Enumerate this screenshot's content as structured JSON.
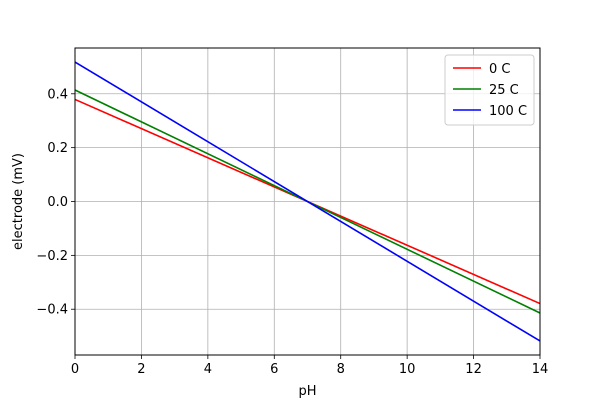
{
  "chart_data": {
    "type": "line",
    "title": "",
    "xlabel": "pH",
    "ylabel": "electrode (mV)",
    "xlim": [
      0,
      14
    ],
    "ylim": [
      -0.57,
      0.57
    ],
    "xticks": [
      0,
      2,
      4,
      6,
      8,
      10,
      12,
      14
    ],
    "yticks": [
      -0.4,
      -0.2,
      0.0,
      0.2,
      0.4
    ],
    "xtick_labels": [
      "0",
      "2",
      "4",
      "6",
      "8",
      "10",
      "12",
      "14"
    ],
    "ytick_labels": [
      "−0.4",
      "−0.2",
      "0.0",
      "0.2",
      "0.4"
    ],
    "grid": true,
    "legend_position": "top-right",
    "x": [
      0,
      14
    ],
    "series": [
      {
        "name": "0 C",
        "color": "#ff0000",
        "values": [
          0.379,
          -0.379
        ]
      },
      {
        "name": "25 C",
        "color": "#008000",
        "values": [
          0.414,
          -0.414
        ]
      },
      {
        "name": "100 C",
        "color": "#0000ff",
        "values": [
          0.518,
          -0.518
        ]
      }
    ]
  }
}
